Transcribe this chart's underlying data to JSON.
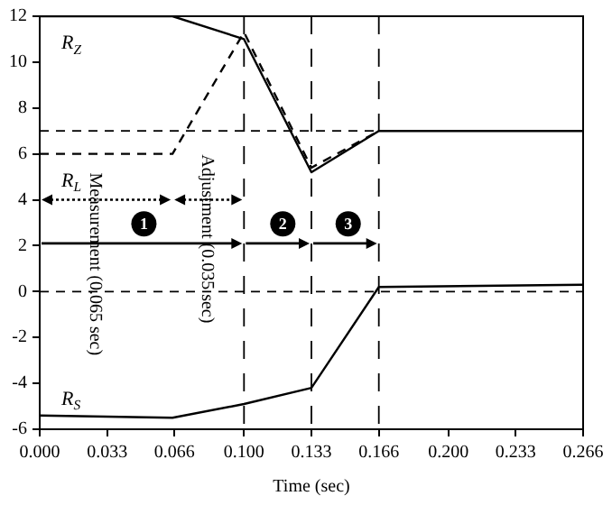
{
  "chart_data": {
    "type": "line",
    "xlabel": "Time (sec)",
    "series": [
      {
        "name": "R$_{Z}$",
        "color": "#000000",
        "line_style": "solid",
        "x": [
          0,
          0.065,
          0.1,
          0.133,
          0.166,
          0.266
        ],
        "values": [
          12,
          12,
          11,
          5.2,
          7,
          7
        ]
      },
      {
        "name": "R$_{L}$",
        "color": "#000000",
        "line_style": "dashed",
        "x": [
          0,
          0.065,
          0.1,
          0.133,
          0.166
        ],
        "values": [
          6,
          6,
          11.3,
          5.4,
          7
        ]
      },
      {
        "name": "R$_{S}$",
        "color": "#000000",
        "line_style": "solid",
        "x": [
          0,
          0.065,
          0.1,
          0.133,
          0.166,
          0.266
        ],
        "values": [
          -5.4,
          -5.5,
          -4.9,
          -4.2,
          0.2,
          0.3
        ]
      }
    ],
    "xlim": [
      0,
      0.266
    ],
    "ylim": [
      -6,
      12
    ],
    "xticks": [
      {
        "value": 0,
        "label": "0.000"
      },
      {
        "value": 0.033,
        "label": "0.033"
      },
      {
        "value": 0.066,
        "label": "0.066"
      },
      {
        "value": 0.1,
        "label": "0.100"
      },
      {
        "value": 0.133,
        "label": "0.133"
      },
      {
        "value": 0.166,
        "label": "0.166"
      },
      {
        "value": 0.2,
        "label": "0.200"
      },
      {
        "value": 0.233,
        "label": "0.233"
      },
      {
        "value": 0.266,
        "label": "0.266"
      }
    ],
    "yticks": [
      -6,
      -4,
      -2,
      0,
      2,
      4,
      6,
      8,
      10,
      12
    ],
    "ref_lines": [
      {
        "axis": "y",
        "value": 7,
        "line_style": "dashed"
      },
      {
        "axis": "y",
        "value": 0,
        "line_style": "dashed"
      },
      {
        "axis": "x",
        "value": 0.1,
        "line_style": "dashed"
      },
      {
        "axis": "x",
        "value": 0.133,
        "line_style": "dashed"
      },
      {
        "axis": "x",
        "value": 0.166,
        "line_style": "dashed"
      }
    ],
    "annotations": [
      "Measurement (0.065 sec)",
      "Adjustment (0.035 sec)",
      "1",
      "2",
      "3"
    ],
    "grid": false,
    "legend": false,
    "marker": "none"
  }
}
